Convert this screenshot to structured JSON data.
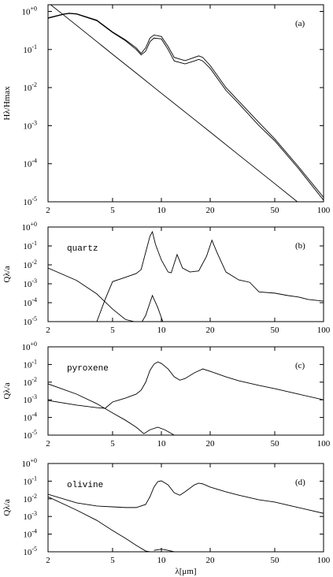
{
  "chart_data": [
    {
      "type": "line",
      "panel_label": "(a)",
      "ylabel": "Hλ/Hmax",
      "log_x": true,
      "log_y": true,
      "xlim": [
        2,
        100
      ],
      "ylim": [
        1e-05,
        1.5
      ],
      "xticks": [
        2,
        5,
        10,
        20,
        50,
        100
      ],
      "yticks": [
        {
          "value": 1,
          "label": "10+0"
        },
        {
          "value": 0.1,
          "label": "10-1"
        },
        {
          "value": 0.01,
          "label": "10-2"
        },
        {
          "value": 0.001,
          "label": "10-3"
        },
        {
          "value": 0.0001,
          "label": "10-4"
        },
        {
          "value": 1e-05,
          "label": "10-5"
        }
      ],
      "series": [
        {
          "color": "#000000",
          "x": [
            2,
            2.5,
            2.7,
            3,
            4,
            5,
            6,
            7,
            7.5,
            8,
            8.5,
            9,
            10,
            11,
            12,
            14,
            16,
            17,
            18,
            20,
            25,
            30,
            40,
            50,
            70,
            100
          ],
          "values": [
            0.68,
            0.86,
            0.9,
            0.87,
            0.59,
            0.29,
            0.18,
            0.11,
            0.079,
            0.11,
            0.2,
            0.24,
            0.22,
            0.12,
            0.062,
            0.051,
            0.062,
            0.068,
            0.062,
            0.038,
            0.01,
            0.0044,
            0.0012,
            0.00045,
            8.4e-05,
            1.3e-05
          ]
        },
        {
          "color": "#000000",
          "x": [
            2,
            2.5,
            2.7,
            3,
            4,
            5,
            6,
            7,
            7.5,
            8,
            8.5,
            9,
            10,
            11,
            12,
            14,
            16,
            17,
            18,
            20,
            25,
            30,
            40,
            50,
            70,
            100
          ],
          "values": [
            0.66,
            0.84,
            0.88,
            0.85,
            0.57,
            0.28,
            0.17,
            0.1,
            0.072,
            0.09,
            0.16,
            0.2,
            0.19,
            0.1,
            0.05,
            0.042,
            0.05,
            0.055,
            0.05,
            0.032,
            0.0085,
            0.0038,
            0.001,
            0.0004,
            7.5e-05,
            1.1e-05
          ]
        },
        {
          "color": "#000000",
          "x": [
            2,
            2.5,
            3,
            4,
            5,
            7,
            10,
            15,
            20,
            30,
            50,
            70
          ],
          "values": [
            1.7,
            0.8,
            0.43,
            0.161,
            0.075,
            0.024,
            0.0071,
            0.0018,
            0.00068,
            0.00017,
            3e-05,
            9.5e-06
          ]
        }
      ]
    },
    {
      "type": "line",
      "panel_label": "(b)",
      "material": "quartz",
      "ylabel": "Qλ/a",
      "log_x": true,
      "log_y": true,
      "xlim": [
        2,
        100
      ],
      "ylim": [
        1e-05,
        1
      ],
      "xticks": [
        2,
        5,
        10,
        20,
        50,
        100
      ],
      "yticks": [
        {
          "value": 1,
          "label": "10+0"
        },
        {
          "value": 0.1,
          "label": "10-1"
        },
        {
          "value": 0.01,
          "label": "10-2"
        },
        {
          "value": 0.001,
          "label": "10-3"
        },
        {
          "value": 0.0001,
          "label": "10-4"
        },
        {
          "value": 1e-05,
          "label": "10-5"
        }
      ],
      "series": [
        {
          "color": "#000000",
          "x": [
            4,
            4.5,
            5,
            6,
            7,
            7.5,
            8,
            8.5,
            8.8,
            9.2,
            10,
            11,
            11.5,
            12.5,
            13.5,
            15,
            17,
            19,
            20.5,
            22,
            25,
            30,
            35,
            40,
            50,
            60,
            70,
            80,
            100
          ],
          "values": [
            1e-05,
            0.00015,
            0.0013,
            0.0022,
            0.0035,
            0.0056,
            0.046,
            0.32,
            0.56,
            0.12,
            0.018,
            0.0042,
            0.0038,
            0.035,
            0.0068,
            0.0042,
            0.0048,
            0.029,
            0.2,
            0.046,
            0.0042,
            0.0016,
            0.0012,
            0.00037,
            0.00032,
            0.00024,
            0.0002,
            0.00015,
            0.00012
          ]
        },
        {
          "color": "#000000",
          "x": [
            2,
            3,
            4,
            5,
            6,
            6.8,
            7.2,
            7.6,
            8,
            8.8,
            9.5,
            10.2
          ],
          "values": [
            0.0068,
            0.0015,
            0.00029,
            4.6e-05,
            1.3e-05,
            1e-05,
            null,
            1e-05,
            2.1e-05,
            0.00024,
            5.6e-05,
            1e-05
          ]
        }
      ]
    },
    {
      "type": "line",
      "panel_label": "(c)",
      "material": "pyroxene",
      "ylabel": "Qλ/a",
      "log_x": true,
      "log_y": true,
      "xlim": [
        2,
        100
      ],
      "ylim": [
        1e-05,
        1
      ],
      "xticks": [
        2,
        5,
        10,
        20,
        50,
        100
      ],
      "yticks": [
        {
          "value": 1,
          "label": "10+0"
        },
        {
          "value": 0.1,
          "label": "10-1"
        },
        {
          "value": 0.01,
          "label": "10-2"
        },
        {
          "value": 0.001,
          "label": "10-3"
        },
        {
          "value": 0.0001,
          "label": "10-4"
        },
        {
          "value": 1e-05,
          "label": "10-5"
        }
      ],
      "series": [
        {
          "color": "#000000",
          "x": [
            2,
            3,
            4,
            4.5,
            5,
            6,
            7,
            7.5,
            8,
            8.5,
            9,
            9.5,
            10,
            11,
            12,
            13,
            14,
            16,
            18,
            20,
            25,
            30,
            40,
            50,
            70,
            100
          ],
          "values": [
            0.00092,
            0.0005,
            0.00036,
            0.00033,
            0.00075,
            0.00125,
            0.0021,
            0.0035,
            0.0098,
            0.046,
            0.104,
            0.14,
            0.115,
            0.056,
            0.02,
            0.013,
            0.016,
            0.034,
            0.056,
            0.041,
            0.02,
            0.012,
            0.0065,
            0.0043,
            0.0021,
            0.001
          ]
        },
        {
          "color": "#000000",
          "x": [
            2,
            3,
            4,
            5,
            6,
            7,
            7.8,
            8.5,
            9.5,
            10.5,
            12
          ],
          "values": [
            0.008,
            0.0021,
            0.0006,
            0.00018,
            7e-05,
            2.8e-05,
            1.2e-05,
            2e-05,
            2.8e-05,
            2e-05,
            1e-05
          ]
        }
      ]
    },
    {
      "type": "line",
      "panel_label": "(d)",
      "material": "olivine",
      "ylabel": "Qλ/a",
      "xlabel": "λ[μm]",
      "log_x": true,
      "log_y": true,
      "xlim": [
        2,
        100
      ],
      "ylim": [
        1e-05,
        1
      ],
      "xticks": [
        2,
        5,
        10,
        20,
        50,
        100
      ],
      "yticks": [
        {
          "value": 1,
          "label": "10+0"
        },
        {
          "value": 0.1,
          "label": "10-1"
        },
        {
          "value": 0.01,
          "label": "10-2"
        },
        {
          "value": 0.001,
          "label": "10-3"
        },
        {
          "value": 0.0001,
          "label": "10-4"
        },
        {
          "value": 1e-05,
          "label": "10-5"
        }
      ],
      "series": [
        {
          "color": "#000000",
          "x": [
            2,
            3,
            4,
            5,
            6,
            7,
            8,
            8.5,
            9,
            9.5,
            10,
            11,
            12,
            13,
            14,
            16,
            17,
            18,
            20,
            25,
            30,
            40,
            50,
            70,
            100
          ],
          "values": [
            0.018,
            0.0059,
            0.0039,
            0.0035,
            0.0032,
            0.0032,
            0.0048,
            0.013,
            0.046,
            0.094,
            0.104,
            0.062,
            0.022,
            0.016,
            0.025,
            0.062,
            0.077,
            0.07,
            0.046,
            0.025,
            0.016,
            0.0088,
            0.0065,
            0.0032,
            0.0015
          ]
        },
        {
          "color": "#000000",
          "x": [
            2,
            3,
            4,
            5,
            6,
            7,
            8,
            8.5,
            8.8,
            9,
            10,
            11,
            12
          ],
          "values": [
            0.013,
            0.0023,
            0.0006,
            0.00016,
            5.8e-05,
            2.3e-05,
            1.1e-05,
            1e-05,
            null,
            1.2e-05,
            1.4e-05,
            1.2e-05,
            1e-05
          ]
        }
      ]
    }
  ]
}
